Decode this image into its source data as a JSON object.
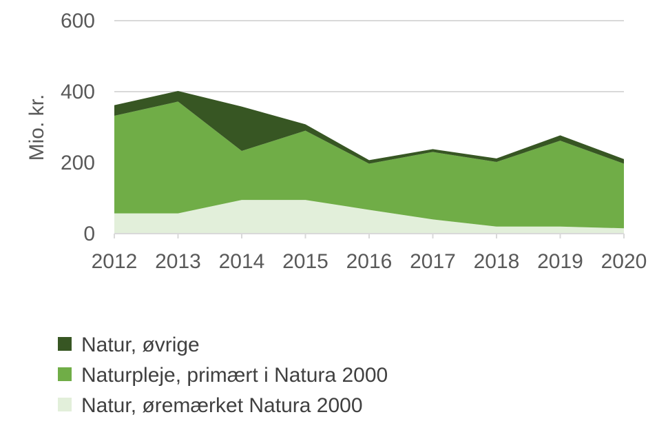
{
  "chart_data": {
    "type": "area",
    "stacked": true,
    "x": [
      2012,
      2013,
      2014,
      2015,
      2016,
      2017,
      2018,
      2019,
      2020
    ],
    "ylabel": "Mio. kr.",
    "xlabel": "",
    "ylim": [
      0,
      600
    ],
    "yticks": [
      0,
      200,
      400,
      600
    ],
    "grid": true,
    "legend_position": "bottom",
    "series": [
      {
        "name": "Natur, øremærket Natura 2000",
        "color": "#e2efda",
        "values": [
          57,
          57,
          95,
          95,
          67,
          40,
          20,
          20,
          15
        ]
      },
      {
        "name": "Naturpleje, primært i Natura 2000",
        "color": "#70ad47",
        "values": [
          275,
          315,
          138,
          195,
          130,
          190,
          182,
          242,
          182
        ]
      },
      {
        "name": "Natur, øvrige",
        "color": "#375623",
        "values": [
          30,
          30,
          125,
          18,
          10,
          8,
          10,
          15,
          13
        ]
      }
    ],
    "legend_order": [
      2,
      1,
      0
    ]
  }
}
